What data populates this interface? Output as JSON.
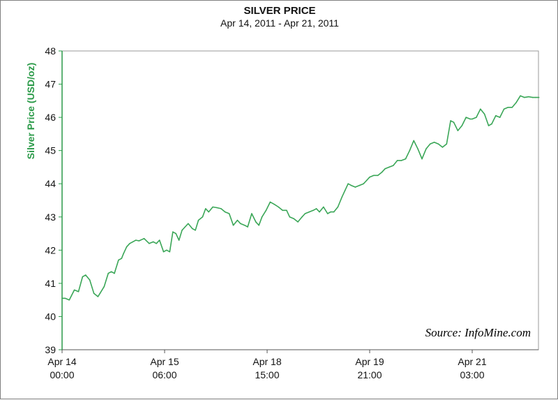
{
  "chart_data": {
    "type": "line",
    "title": "SILVER PRICE",
    "subtitle": "Apr 14, 2011 - Apr 21, 2011",
    "ylabel": "Silver Price (USD/oz)",
    "xlabel": "",
    "ylim": [
      39,
      48
    ],
    "yticks": [
      39,
      40,
      41,
      42,
      43,
      44,
      45,
      46,
      47,
      48
    ],
    "xlim": [
      0,
      4.65
    ],
    "xticks": [
      {
        "x": 0,
        "line1": "Apr 14",
        "line2": "00:00"
      },
      {
        "x": 1,
        "line1": "Apr 15",
        "line2": "06:00"
      },
      {
        "x": 2,
        "line1": "Apr 18",
        "line2": "15:00"
      },
      {
        "x": 3,
        "line1": "Apr 19",
        "line2": "21:00"
      },
      {
        "x": 4,
        "line1": "Apr 21",
        "line2": "03:00"
      }
    ],
    "grid": true,
    "source_note": "Source: InfoMine.com",
    "colors": {
      "line": "#3aa657",
      "axis": "#2a9a48",
      "grid": "#c8c8c8"
    },
    "series": [
      {
        "x": [
          0,
          0.03,
          0.07,
          0.12,
          0.16,
          0.2,
          0.23,
          0.27,
          0.31,
          0.35,
          0.37,
          0.41,
          0.45,
          0.48,
          0.51,
          0.55,
          0.58,
          0.6,
          0.63,
          0.66,
          0.69,
          0.72,
          0.75,
          0.8,
          0.85,
          0.89,
          0.92,
          0.95,
          0.99,
          1.02,
          1.05,
          1.08,
          1.11,
          1.14,
          1.17,
          1.2,
          1.23,
          1.27,
          1.3,
          1.33,
          1.37,
          1.4,
          1.43,
          1.47,
          1.51,
          1.55,
          1.59,
          1.63,
          1.67,
          1.71,
          1.74,
          1.78,
          1.81,
          1.85,
          1.89,
          1.92,
          1.95,
          1.99,
          2.03,
          2.07,
          2.11,
          2.15,
          2.19,
          2.22,
          2.26,
          2.3,
          2.34,
          2.37,
          2.41,
          2.45,
          2.48,
          2.51,
          2.55,
          2.59,
          2.62,
          2.65,
          2.69,
          2.73,
          2.76,
          2.79,
          2.82,
          2.86,
          2.9,
          2.94,
          2.97,
          3.0,
          3.04,
          3.08,
          3.12,
          3.15,
          3.19,
          3.23,
          3.27,
          3.31,
          3.35,
          3.39,
          3.43,
          3.47,
          3.51,
          3.55,
          3.59,
          3.63,
          3.67,
          3.71,
          3.75,
          3.79,
          3.82,
          3.86,
          3.9,
          3.94,
          3.98,
          4.0,
          4.04,
          4.08,
          4.12,
          4.16,
          4.19,
          4.23,
          4.27,
          4.31,
          4.35,
          4.39,
          4.43,
          4.47,
          4.51,
          4.55,
          4.59,
          4.62,
          4.65
        ],
        "values": [
          40.55,
          40.55,
          40.5,
          40.8,
          40.75,
          41.2,
          41.25,
          41.1,
          40.7,
          40.6,
          40.7,
          40.9,
          41.3,
          41.35,
          41.3,
          41.7,
          41.75,
          41.9,
          42.1,
          42.2,
          42.25,
          42.3,
          42.28,
          42.35,
          42.2,
          42.25,
          42.2,
          42.3,
          41.95,
          42.0,
          41.95,
          42.55,
          42.5,
          42.3,
          42.6,
          42.7,
          42.8,
          42.65,
          42.6,
          42.9,
          43.0,
          43.25,
          43.15,
          43.3,
          43.28,
          43.25,
          43.15,
          43.1,
          42.75,
          42.9,
          42.8,
          42.75,
          42.7,
          43.1,
          42.85,
          42.75,
          43.0,
          43.2,
          43.45,
          43.38,
          43.3,
          43.2,
          43.2,
          43.0,
          42.95,
          42.85,
          43.0,
          43.1,
          43.15,
          43.2,
          43.25,
          43.15,
          43.3,
          43.1,
          43.15,
          43.15,
          43.3,
          43.6,
          43.8,
          44.0,
          43.95,
          43.9,
          43.95,
          44.0,
          44.1,
          44.2,
          44.25,
          44.25,
          44.35,
          44.45,
          44.5,
          44.55,
          44.7,
          44.7,
          44.75,
          45.0,
          45.3,
          45.05,
          44.75,
          45.05,
          45.2,
          45.25,
          45.2,
          45.1,
          45.2,
          45.9,
          45.85,
          45.6,
          45.75,
          46.0,
          45.95,
          45.95,
          46.0,
          46.25,
          46.1,
          45.75,
          45.8,
          46.05,
          46.0,
          46.25,
          46.3,
          46.3,
          46.45,
          46.65,
          46.6,
          46.62,
          46.6,
          46.6,
          46.6
        ]
      }
    ]
  }
}
